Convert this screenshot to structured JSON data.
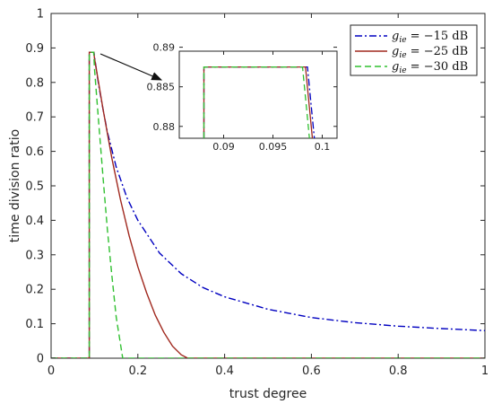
{
  "chart_data": {
    "type": "line",
    "xlabel": "trust degree",
    "ylabel": "time division ratio",
    "xlim": [
      0,
      1
    ],
    "ylim": [
      0,
      1
    ],
    "xticks": [
      "0",
      "0.2",
      "0.4",
      "0.6",
      "0.8",
      "1"
    ],
    "yticks": [
      "0",
      "0.1",
      "0.2",
      "0.3",
      "0.4",
      "0.5",
      "0.6",
      "0.7",
      "0.8",
      "0.9",
      "1"
    ],
    "grid": false,
    "legend_position": "top-right",
    "series": [
      {
        "name": "g_ie = -15 dB",
        "legend_var": "g",
        "legend_sub": "ie",
        "legend_rest": " = −15 dB",
        "color": "#0000c0",
        "dash": "dashdot",
        "x": [
          0,
          0.088,
          0.088,
          0.0988,
          0.1,
          0.11,
          0.12,
          0.13,
          0.15,
          0.175,
          0.2,
          0.25,
          0.3,
          0.35,
          0.4,
          0.5,
          0.6,
          0.7,
          0.8,
          0.9,
          1.0
        ],
        "y": [
          0,
          0,
          0.8875,
          0.8875,
          0.875,
          0.79,
          0.72,
          0.655,
          0.555,
          0.465,
          0.4,
          0.305,
          0.245,
          0.205,
          0.178,
          0.142,
          0.118,
          0.103,
          0.093,
          0.086,
          0.08
        ]
      },
      {
        "name": "g_ie = -25 dB",
        "legend_var": "g",
        "legend_sub": "ie",
        "legend_rest": " = −25 dB",
        "color": "#a0281e",
        "dash": "solid",
        "x": [
          0,
          0.088,
          0.088,
          0.0986,
          0.1,
          0.12,
          0.14,
          0.16,
          0.18,
          0.2,
          0.22,
          0.24,
          0.26,
          0.28,
          0.3,
          0.315,
          1.0
        ],
        "y": [
          0,
          0,
          0.8875,
          0.8875,
          0.87,
          0.72,
          0.58,
          0.46,
          0.355,
          0.265,
          0.19,
          0.125,
          0.075,
          0.035,
          0.01,
          0,
          0
        ]
      },
      {
        "name": "g_ie = -30 dB",
        "legend_var": "g",
        "legend_sub": "ie",
        "legend_rest": " = −30 dB",
        "color": "#30c030",
        "dash": "dashed",
        "x": [
          0,
          0.088,
          0.088,
          0.0982,
          0.1,
          0.11,
          0.12,
          0.13,
          0.14,
          0.15,
          0.165,
          1.0
        ],
        "y": [
          0,
          0,
          0.8875,
          0.8875,
          0.84,
          0.68,
          0.52,
          0.37,
          0.24,
          0.12,
          0,
          0
        ]
      }
    ],
    "inset": {
      "xlim": [
        0.0855,
        0.1015
      ],
      "ylim": [
        0.8785,
        0.8895
      ],
      "xticks": [
        0.09,
        0.095,
        0.1
      ],
      "xtick_labels": [
        "0.09",
        "0.095",
        "0.1"
      ],
      "yticks": [
        0.88,
        0.885,
        0.89
      ],
      "ytick_labels": [
        "0.88",
        "0.885",
        "0.89"
      ],
      "series": [
        {
          "x": [
            0.088,
            0.088,
            0.0985,
            0.0992,
            0.0992
          ],
          "y": [
            0.8785,
            0.8875,
            0.8875,
            0.8785,
            0.8785
          ]
        },
        {
          "x": [
            0.088,
            0.088,
            0.0983,
            0.099,
            0.099
          ],
          "y": [
            0.8785,
            0.8875,
            0.8875,
            0.8785,
            0.8785
          ]
        },
        {
          "x": [
            0.088,
            0.088,
            0.098,
            0.0987,
            0.0987
          ],
          "y": [
            0.8785,
            0.8875,
            0.8875,
            0.8785,
            0.8785
          ]
        }
      ]
    }
  }
}
